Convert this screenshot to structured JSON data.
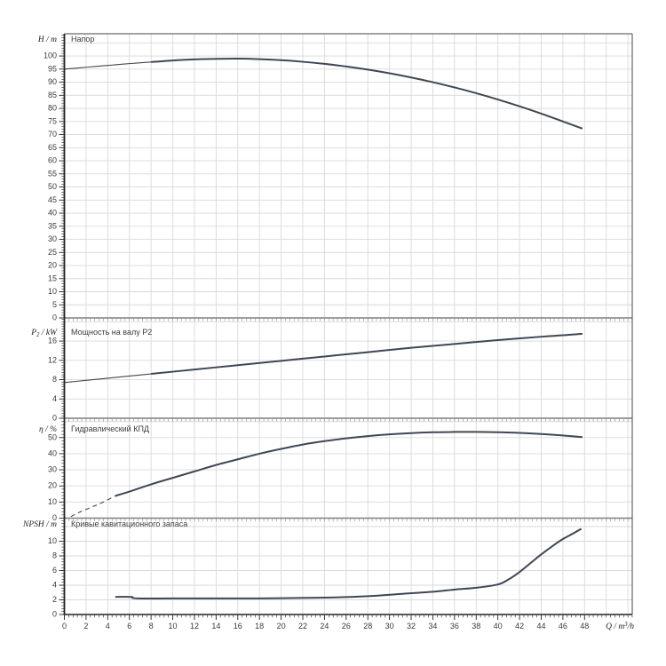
{
  "chart_data": {
    "type": "line",
    "x_axis": {
      "label": "Q / m³/h",
      "min": 0,
      "max": 52.4,
      "ticks": [
        0,
        2,
        4,
        6,
        8,
        10,
        12,
        14,
        16,
        18,
        20,
        22,
        24,
        26,
        28,
        30,
        32,
        34,
        36,
        38,
        40,
        42,
        44,
        46,
        48
      ],
      "minor_step": 0.4,
      "grid_step": 2
    },
    "colors": {
      "curve": "#3e4854",
      "grid": "#d9d9d9",
      "axis": "#222222",
      "separator": "#7f7f7f",
      "text": "#3a3a3a"
    },
    "panels": [
      {
        "id": "napor",
        "title": "Напор",
        "unit_label": "H / m",
        "ymin": 0,
        "ymax": 108.5,
        "yticks": [
          0,
          5,
          10,
          15,
          20,
          25,
          30,
          35,
          40,
          45,
          50,
          55,
          60,
          65,
          70,
          75,
          80,
          85,
          90,
          95,
          100
        ],
        "minor_step": 1,
        "series": [
          {
            "name": "head-curve-lead",
            "style": "thin",
            "dash": false,
            "points": [
              [
                0,
                95.0
              ],
              [
                2,
                95.7
              ],
              [
                4,
                96.4
              ],
              [
                6,
                97.1
              ],
              [
                8,
                97.7
              ]
            ]
          },
          {
            "name": "head-curve",
            "style": "thick",
            "dash": false,
            "points": [
              [
                8,
                97.7
              ],
              [
                10,
                98.3
              ],
              [
                12,
                98.7
              ],
              [
                14,
                98.9
              ],
              [
                16,
                99.0
              ],
              [
                18,
                98.8
              ],
              [
                20,
                98.4
              ],
              [
                22,
                97.8
              ],
              [
                24,
                97.0
              ],
              [
                26,
                96.0
              ],
              [
                28,
                94.8
              ],
              [
                30,
                93.4
              ],
              [
                32,
                91.8
              ],
              [
                34,
                90.0
              ],
              [
                36,
                88.0
              ],
              [
                38,
                85.8
              ],
              [
                40,
                83.4
              ],
              [
                42,
                80.8
              ],
              [
                44,
                78.0
              ],
              [
                46,
                75.0
              ],
              [
                47.8,
                72.3
              ]
            ]
          }
        ]
      },
      {
        "id": "p2",
        "title": "Мощность на валу P2",
        "unit_label": "P₂ / kW",
        "ymin": 0,
        "ymax": 20.8,
        "yticks": [
          0,
          4,
          8,
          12,
          16
        ],
        "minor_step": 0.5,
        "series": [
          {
            "name": "power-curve-lead",
            "style": "thin",
            "dash": false,
            "points": [
              [
                0,
                7.4
              ],
              [
                2,
                7.85
              ],
              [
                4,
                8.3
              ],
              [
                6,
                8.75
              ],
              [
                8,
                9.2
              ]
            ]
          },
          {
            "name": "power-curve",
            "style": "thick",
            "dash": false,
            "points": [
              [
                8,
                9.2
              ],
              [
                12,
                10.1
              ],
              [
                16,
                11.0
              ],
              [
                20,
                11.9
              ],
              [
                24,
                12.8
              ],
              [
                28,
                13.7
              ],
              [
                32,
                14.6
              ],
              [
                36,
                15.4
              ],
              [
                40,
                16.2
              ],
              [
                44,
                16.9
              ],
              [
                46,
                17.2
              ],
              [
                47.8,
                17.5
              ]
            ]
          }
        ]
      },
      {
        "id": "kpd",
        "title": "Гидравлический КПД",
        "unit_label": "η / %",
        "ymin": 0,
        "ymax": 62,
        "yticks": [
          0,
          10,
          20,
          30,
          40,
          50
        ],
        "minor_step": 2,
        "series": [
          {
            "name": "efficiency-curve-dashed",
            "style": "thin",
            "dash": true,
            "points": [
              [
                0.6,
                1
              ],
              [
                1.5,
                4
              ],
              [
                2.5,
                6.8
              ],
              [
                3.5,
                9.7
              ],
              [
                4.7,
                13.8
              ]
            ]
          },
          {
            "name": "efficiency-curve",
            "style": "thick",
            "dash": false,
            "points": [
              [
                4.7,
                13.8
              ],
              [
                6,
                16.5
              ],
              [
                8,
                21
              ],
              [
                10,
                25
              ],
              [
                12,
                29
              ],
              [
                14,
                33
              ],
              [
                16,
                36.5
              ],
              [
                18,
                40
              ],
              [
                20,
                43
              ],
              [
                22,
                45.7
              ],
              [
                24,
                47.8
              ],
              [
                26,
                49.5
              ],
              [
                28,
                50.9
              ],
              [
                30,
                52
              ],
              [
                32,
                52.8
              ],
              [
                34,
                53.3
              ],
              [
                36,
                53.5
              ],
              [
                38,
                53.5
              ],
              [
                40,
                53.3
              ],
              [
                42,
                52.9
              ],
              [
                44,
                52.2
              ],
              [
                46,
                51.3
              ],
              [
                47.8,
                50.3
              ]
            ]
          }
        ]
      },
      {
        "id": "npsh",
        "title": "Кривые кавитационного запаса",
        "unit_label": "NPSH / m",
        "ymin": 0,
        "ymax": 13.15,
        "yticks": [
          0,
          2,
          4,
          6,
          8,
          10
        ],
        "minor_step": 0.4,
        "series": [
          {
            "name": "npsh-curve",
            "style": "thick",
            "dash": false,
            "points": [
              [
                4.7,
                2.4
              ],
              [
                6.2,
                2.4
              ],
              [
                6.8,
                2.2
              ],
              [
                12,
                2.2
              ],
              [
                18,
                2.2
              ],
              [
                24,
                2.3
              ],
              [
                28,
                2.5
              ],
              [
                31,
                2.8
              ],
              [
                34,
                3.1
              ],
              [
                36,
                3.4
              ],
              [
                38,
                3.65
              ],
              [
                40,
                4.1
              ],
              [
                41,
                4.8
              ],
              [
                42,
                5.8
              ],
              [
                43,
                7.0
              ],
              [
                44,
                8.2
              ],
              [
                45,
                9.3
              ],
              [
                46,
                10.3
              ],
              [
                47,
                11.1
              ],
              [
                47.7,
                11.7
              ]
            ]
          }
        ]
      }
    ]
  }
}
